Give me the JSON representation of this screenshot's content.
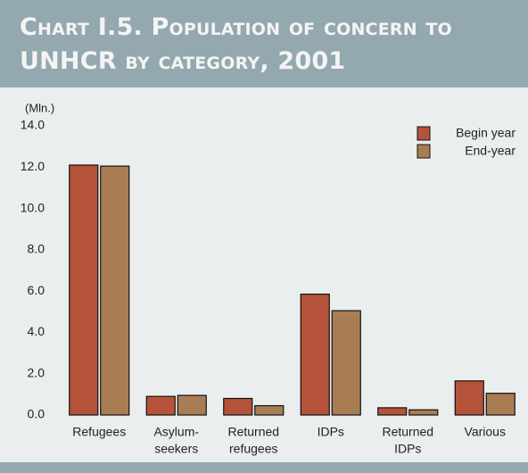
{
  "chart_data": {
    "type": "bar",
    "title": "Chart I.5. Population of concern to UNHCR by category, 2001",
    "y_label": "(Mln.)",
    "categories": [
      [
        "Refugees"
      ],
      [
        "Asylum-",
        "seekers"
      ],
      [
        "Returned",
        "refugees"
      ],
      [
        "IDPs"
      ],
      [
        "Returned",
        "IDPs"
      ],
      [
        "Various"
      ]
    ],
    "series": [
      {
        "name": "Begin year",
        "color": "#b5533a",
        "values": [
          12.1,
          0.9,
          0.8,
          5.85,
          0.35,
          1.65
        ]
      },
      {
        "name": "End-year",
        "color": "#a97d54",
        "values": [
          12.05,
          0.95,
          0.45,
          5.05,
          0.25,
          1.05
        ]
      }
    ],
    "ylim": [
      0,
      14
    ],
    "yticks": [
      {
        "value": 0,
        "label": "0.0"
      },
      {
        "value": 2,
        "label": "2.0"
      },
      {
        "value": 4,
        "label": "4.0"
      },
      {
        "value": 6,
        "label": "6.0"
      },
      {
        "value": 8,
        "label": "8.0"
      },
      {
        "value": 10,
        "label": "10.0"
      },
      {
        "value": 12,
        "label": "12.0"
      },
      {
        "value": 14,
        "label": "14.0"
      }
    ],
    "grid": false,
    "legend": "top-right"
  }
}
